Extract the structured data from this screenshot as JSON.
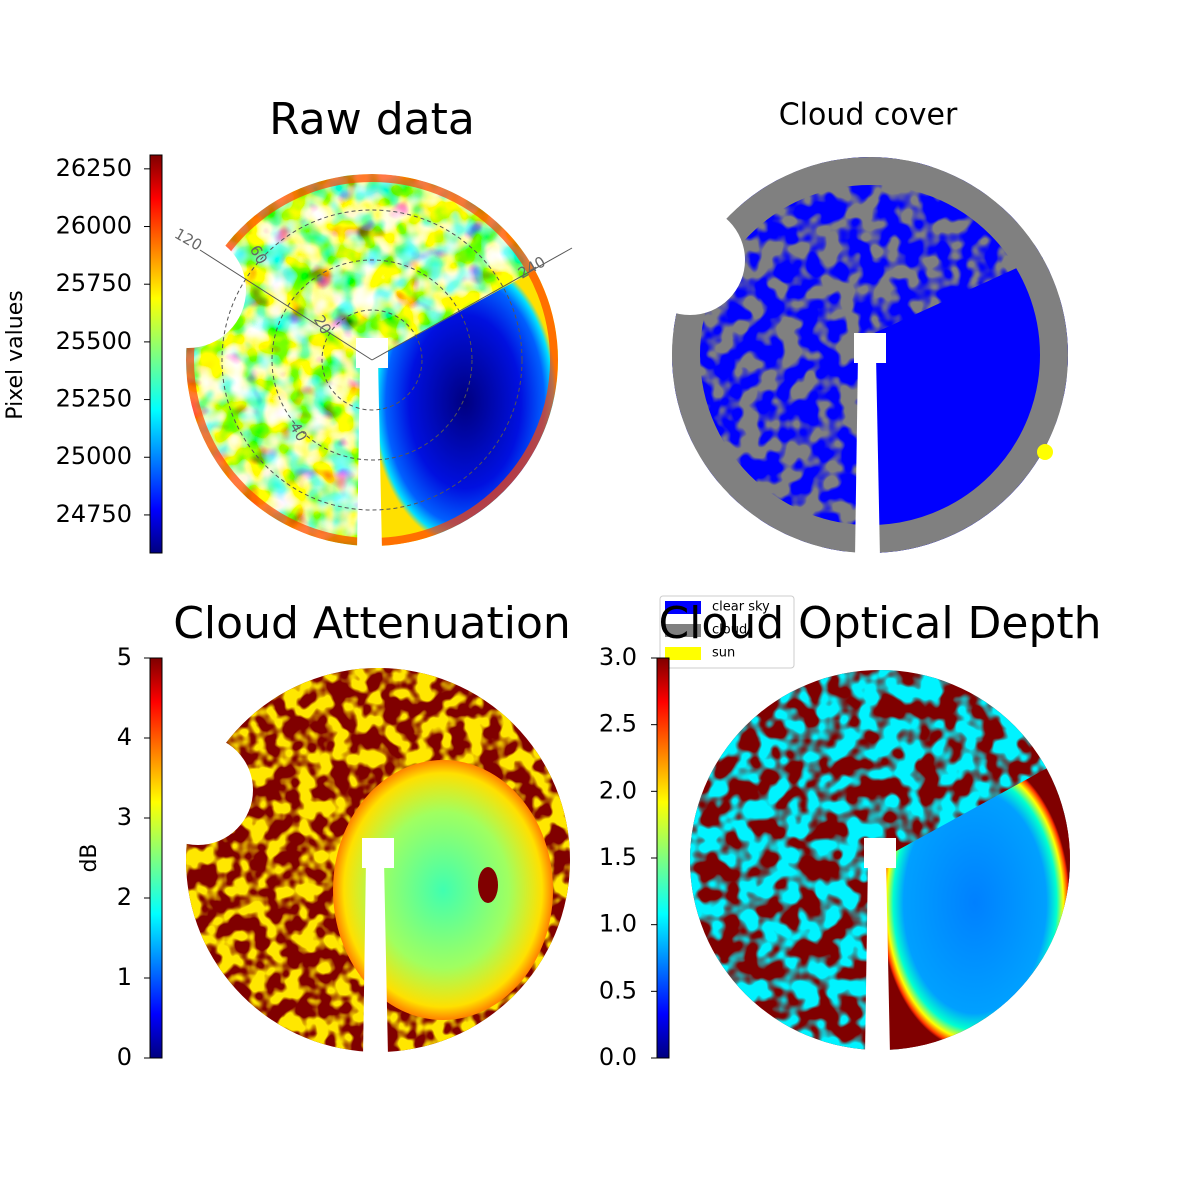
{
  "chart_data": [
    {
      "type": "heatmap",
      "title": "Raw data",
      "colorbar_label": "Pixel values",
      "colormap": "jet",
      "clim": [
        24585,
        26310
      ],
      "cticks": [
        24750,
        25000,
        25250,
        25500,
        25750,
        26000,
        26250
      ],
      "annotations": [
        "120",
        "240",
        "60",
        "20",
        "40"
      ]
    },
    {
      "type": "segmentation",
      "title": "Cloud cover",
      "series": [
        {
          "name": "clear sky",
          "color": "#0000ff"
        },
        {
          "name": "cloud",
          "color": "#808080"
        },
        {
          "name": "sun",
          "color": "#ffff00"
        }
      ]
    },
    {
      "type": "heatmap",
      "title": "Cloud Attenuation",
      "colorbar_label": "dB",
      "colormap": "jet",
      "clim": [
        0,
        5
      ],
      "cticks": [
        0,
        1,
        2,
        3,
        4,
        5
      ]
    },
    {
      "type": "heatmap",
      "title": "Cloud Optical Depth",
      "colormap": "jet",
      "clim": [
        0,
        3
      ],
      "cticks": [
        {
          "value": 0,
          "label": "0.0"
        },
        0.5,
        {
          "value": 1,
          "label": "1.0"
        },
        1.5,
        {
          "value": 2,
          "label": "2.0"
        },
        2.5,
        {
          "value": 3,
          "label": "3.0"
        }
      ]
    }
  ]
}
